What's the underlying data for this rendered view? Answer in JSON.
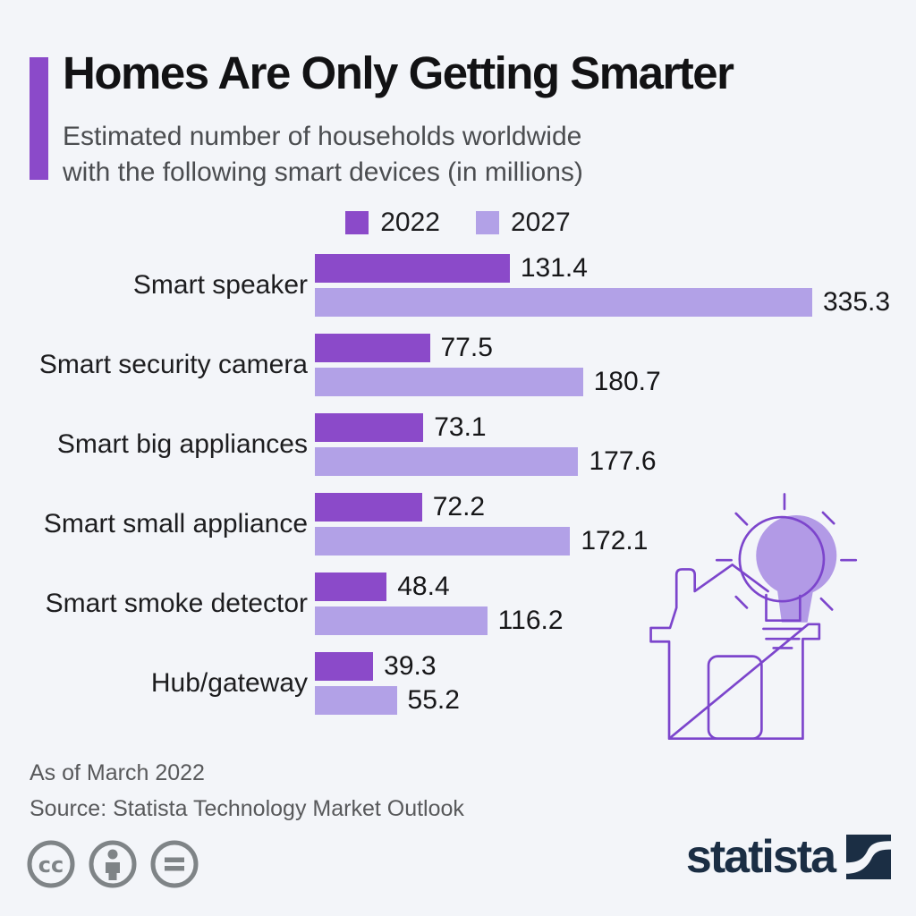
{
  "header": {
    "title": "Homes Are Only Getting Smarter",
    "subtitle_line1": "Estimated number of households worldwide",
    "subtitle_line2": "with the following smart devices (in millions)"
  },
  "legend": {
    "items": [
      {
        "label": "2022",
        "color": "#8b4ac9"
      },
      {
        "label": "2027",
        "color": "#b2a1e7"
      }
    ]
  },
  "chart_data": {
    "type": "bar",
    "orientation": "horizontal",
    "title": "Homes Are Only Getting Smarter",
    "subtitle": "Estimated number of households worldwide with the following smart devices (in millions)",
    "unit": "millions of households",
    "categories": [
      "Smart speaker",
      "Smart security camera",
      "Smart big appliances",
      "Smart small appliance",
      "Smart smoke detector",
      "Hub/gateway"
    ],
    "series": [
      {
        "name": "2022",
        "color": "#8b4ac9",
        "values": [
          131.4,
          77.5,
          73.1,
          72.2,
          48.4,
          39.3
        ]
      },
      {
        "name": "2027",
        "color": "#b2a1e7",
        "values": [
          335.3,
          180.7,
          177.6,
          172.1,
          116.2,
          55.2
        ]
      }
    ],
    "xlim": [
      0,
      360
    ],
    "grid": false,
    "value_labels": "end-of-bar",
    "legend_position": "top-center"
  },
  "footer": {
    "note": "As of March 2022",
    "source": "Source: Statista Technology Market Outlook"
  },
  "branding": {
    "wordmark": "statista",
    "license_icons": [
      "cc-icon",
      "attribution-icon",
      "nd-icon"
    ]
  },
  "colors": {
    "background": "#f3f5f9",
    "accent_bar": "#8b4ac9",
    "series_2022": "#8b4ac9",
    "series_2027": "#b2a1e7",
    "illustration_stroke": "#7c45cc",
    "illustration_fill": "#b29ae6",
    "wordmark_navy": "#1b2e44",
    "license_gray": "#7f8487"
  }
}
